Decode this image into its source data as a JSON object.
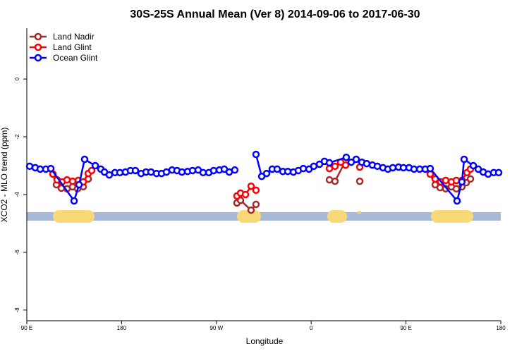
{
  "chart_data": {
    "type": "line",
    "title": "30S-25S Annual Mean (Ver 8)   2014-09-06 to 2017-06-30",
    "xlabel": "Longitude",
    "ylabel": "XCO2 - MLO trend (ppm)",
    "xlim": [
      90,
      540
    ],
    "ylim": [
      -8.37,
      1.76
    ],
    "xticks": [
      {
        "value": 90,
        "label": "90 E"
      },
      {
        "value": 180,
        "label": "180"
      },
      {
        "value": 270,
        "label": "90 W"
      },
      {
        "value": 360,
        "label": "0"
      },
      {
        "value": 450,
        "label": "90 E"
      },
      {
        "value": 540,
        "label": "180"
      }
    ],
    "yticks": [
      0,
      -2,
      -4,
      -6,
      -8
    ],
    "legend": "top-left",
    "grid": false,
    "series": [
      {
        "name": "Land Nadir",
        "color": "#a52a2a",
        "x": [
          114.8,
          118.1,
          122.8,
          128.2,
          133.5,
          138.2,
          143.6,
          148.3,
          null,
          289.5,
          292.9,
          302.9,
          307.6,
          null,
          377.3,
          382.6,
          392.7,
          null,
          406.1,
          null,
          473.0,
          477.7,
          482.4,
          487.7,
          493.1,
          497.8,
          503.1,
          507.2,
          511.2
        ],
        "values": [
          -3.29,
          -3.66,
          -3.78,
          -3.8,
          -3.73,
          -3.8,
          -3.73,
          -3.46,
          null,
          -4.29,
          -4.2,
          -4.54,
          -4.34,
          null,
          -3.49,
          -3.54,
          -2.83,
          null,
          -3.54,
          null,
          -3.29,
          -3.66,
          -3.76,
          -3.8,
          -3.73,
          -3.8,
          -3.73,
          -3.59,
          -3.46
        ]
      },
      {
        "name": "Land Glint",
        "color": "#ff0000",
        "x": [
          114.8,
          118.8,
          123.5,
          128.2,
          133.5,
          138.9,
          143.6,
          148.3,
          151.6,
          null,
          289.5,
          292.9,
          297.6,
          302.9,
          307.6,
          null,
          377.3,
          382.6,
          388.0,
          392.7,
          null,
          406.1,
          null,
          473.0,
          477.7,
          483.0,
          487.7,
          493.1,
          497.8,
          503.1,
          507.9,
          511.2
        ],
        "values": [
          -3.29,
          -3.49,
          -3.56,
          -3.49,
          -3.54,
          -3.51,
          -3.56,
          -3.27,
          -3.17,
          null,
          -4.05,
          -3.95,
          -4.0,
          -3.71,
          -3.85,
          null,
          -3.1,
          -3.02,
          -2.88,
          -2.98,
          null,
          -3.05,
          null,
          -3.29,
          -3.46,
          -3.56,
          -3.51,
          -3.56,
          -3.51,
          -3.51,
          -3.24,
          -3.12
        ]
      },
      {
        "name": "Ocean Glint",
        "color": "#0000ff",
        "x": [
          92.7,
          98.0,
          102.7,
          108.1,
          112.8,
          134.9,
          139.6,
          144.9,
          155.0,
          160.3,
          163.7,
          168.3,
          173.7,
          178.4,
          183.7,
          188.4,
          193.1,
          198.5,
          203.2,
          207.9,
          213.2,
          217.9,
          222.6,
          227.9,
          232.6,
          237.3,
          242.7,
          247.4,
          252.7,
          257.4,
          262.8,
          267.4,
          272.8,
          277.5,
          282.2,
          287.5,
          null,
          307.6,
          313.0,
          317.7,
          323.0,
          327.7,
          333.1,
          337.8,
          343.1,
          347.8,
          352.5,
          357.9,
          362.5,
          367.9,
          372.6,
          377.3,
          393.3,
          398.0,
          402.7,
          408.1,
          412.7,
          418.1,
          422.8,
          428.1,
          432.8,
          437.5,
          442.9,
          447.6,
          452.9,
          457.6,
          463.0,
          468.3,
          473.0,
          498.5,
          503.1,
          505.2,
          513.9,
          518.6,
          523.3,
          528.0,
          533.3,
          538.0
        ],
        "values": [
          -3.02,
          -3.07,
          -3.12,
          -3.12,
          -3.1,
          -4.22,
          -3.66,
          -2.78,
          -3.0,
          -3.12,
          -3.22,
          -3.32,
          -3.24,
          -3.24,
          -3.22,
          -3.17,
          -3.17,
          -3.27,
          -3.22,
          -3.22,
          -3.27,
          -3.27,
          -3.22,
          -3.15,
          -3.17,
          -3.22,
          -3.2,
          -3.17,
          -3.15,
          -3.24,
          -3.24,
          -3.17,
          -3.15,
          -3.12,
          -3.22,
          -3.15,
          null,
          -2.61,
          -3.37,
          -3.27,
          -3.12,
          -3.12,
          -3.2,
          -3.2,
          -3.22,
          -3.17,
          -3.1,
          -3.12,
          -3.02,
          -2.95,
          -2.85,
          -2.9,
          -2.71,
          -2.88,
          -2.78,
          -2.88,
          -2.93,
          -2.98,
          -3.02,
          -3.07,
          -3.12,
          -3.07,
          -3.05,
          -3.07,
          -3.07,
          -3.12,
          -3.12,
          -3.12,
          -3.1,
          -4.22,
          -3.56,
          -2.78,
          -3.0,
          -3.12,
          -3.22,
          -3.29,
          -3.24,
          -3.24
        ]
      }
    ]
  }
}
